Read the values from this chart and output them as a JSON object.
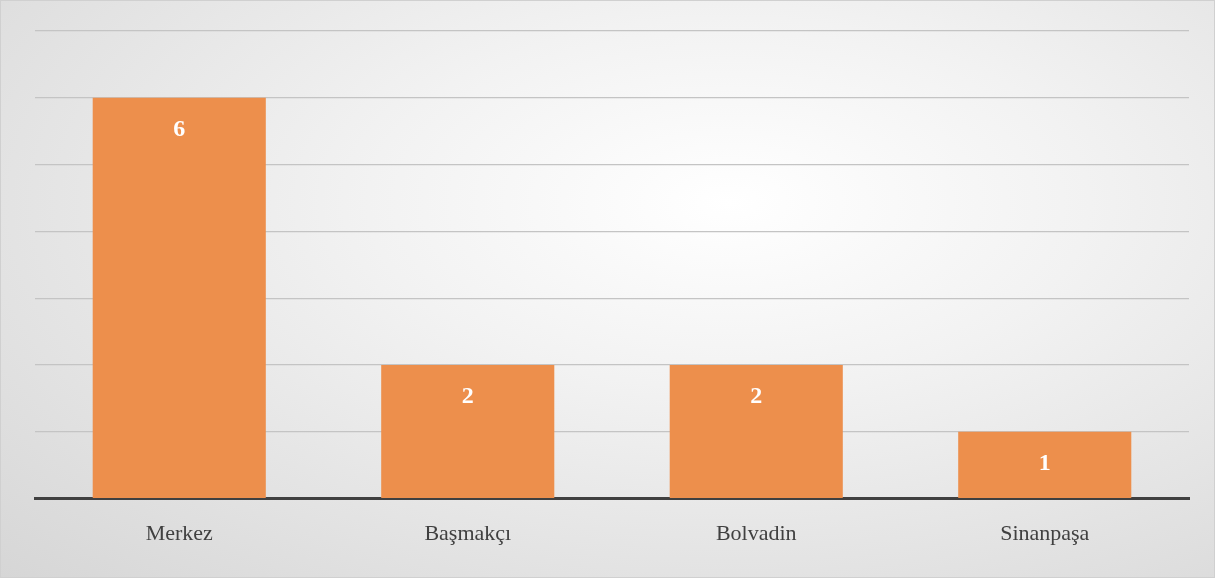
{
  "chart_data": {
    "type": "bar",
    "categories": [
      "Merkez",
      "Başmakçı",
      "Bolvadin",
      "Sinanpaşa"
    ],
    "values": [
      6,
      2,
      2,
      1
    ],
    "color": "#ed8f4c",
    "ylim": [
      0,
      7
    ],
    "yticks": [
      {
        "value": 0,
        "label": null
      },
      {
        "value": 1,
        "label": null
      },
      {
        "value": 2,
        "label": null
      },
      {
        "value": 3,
        "label": null
      },
      {
        "value": 4,
        "label": null
      },
      {
        "value": 5,
        "label": null
      },
      {
        "value": 6,
        "label": null
      },
      {
        "value": 7,
        "label": null
      }
    ],
    "grid": "y",
    "tick_labels": "x",
    "data_labels": true
  }
}
